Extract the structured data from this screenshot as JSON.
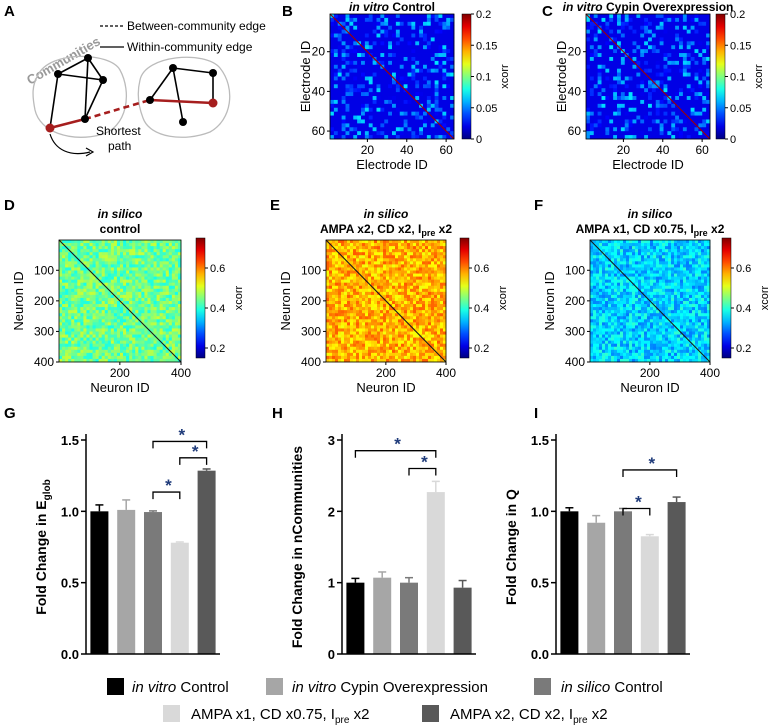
{
  "panel_letters": {
    "A": "A",
    "B": "B",
    "C": "C",
    "D": "D",
    "E": "E",
    "F": "F",
    "G": "G",
    "H": "H",
    "I": "I"
  },
  "diagram": {
    "legend_between": "Between-community edge",
    "legend_within": "Within-community edge",
    "communities_label": "Communities",
    "shortest_path_line1": "Shortest",
    "shortest_path_line2": "path"
  },
  "colors": {
    "black": "#000000",
    "in_vitro_cypin": "#a6a6a6",
    "in_silico_control": "#7a7a7a",
    "ampa_x1": "#d9d9d9",
    "ampa_x2": "#595959",
    "path_red": "#a61e1e"
  },
  "legend": {
    "item1_italic": "in vitro",
    "item1_rest": " Control",
    "item2_italic": "in vitro",
    "item2_rest": " Cypin Overexpression",
    "item3_italic": "in silico",
    "item3_rest": " Control",
    "item4": "AMPA x1, CD x0.75, I",
    "item4_sub": "pre",
    "item4_tail": " x2",
    "item5": "AMPA x2, CD x2, I",
    "item5_sub": "pre",
    "item5_tail": " x2"
  },
  "chart_data": [
    {
      "id": "B",
      "type": "heatmap",
      "title_italic": "in vitro",
      "title_rest": " Control",
      "xlabel": "Electrode ID",
      "ylabel": "Electrode ID",
      "xticks": [
        "20",
        "40",
        "60"
      ],
      "yticks": [
        "20",
        "40",
        "60"
      ],
      "range": [
        1,
        64
      ],
      "colorbar_label": "xcorr",
      "colorbar_ticks": [
        "0.2",
        "0.15",
        "0.1",
        "0.05",
        "0"
      ],
      "clim": [
        0,
        0.2
      ],
      "mean_value": 0.03
    },
    {
      "id": "C",
      "type": "heatmap",
      "title_italic": "in vitro",
      "title_rest": " Cypin Overexpression",
      "xlabel": "Electrode ID",
      "ylabel": "Electrode ID",
      "xticks": [
        "20",
        "40",
        "60"
      ],
      "yticks": [
        "20",
        "40",
        "60"
      ],
      "range": [
        1,
        64
      ],
      "colorbar_label": "xcorr",
      "colorbar_ticks": [
        "0.2",
        "0.15",
        "0.1",
        "0.05",
        "0"
      ],
      "clim": [
        0,
        0.2
      ],
      "mean_value": 0.03
    },
    {
      "id": "D",
      "type": "heatmap",
      "title_italic": "in silico",
      "title_line2": "control",
      "xlabel": "Neuron ID",
      "ylabel": "Neuron ID",
      "xticks": [
        "200",
        "400"
      ],
      "yticks": [
        "100",
        "200",
        "300",
        "400"
      ],
      "range": [
        1,
        400
      ],
      "colorbar_label": "xcorr",
      "colorbar_ticks": [
        "0.6",
        "0.4",
        "0.2"
      ],
      "clim": [
        0.15,
        0.75
      ],
      "mean_value": 0.44
    },
    {
      "id": "E",
      "type": "heatmap",
      "title_italic": "in silico",
      "title_line2": "AMPA x2, CD x2, I",
      "title_sub": "pre",
      "title_tail": " x2",
      "xlabel": "Neuron ID",
      "ylabel": "Neuron ID",
      "xticks": [
        "200",
        "400"
      ],
      "yticks": [
        "100",
        "200",
        "300",
        "400"
      ],
      "range": [
        1,
        400
      ],
      "colorbar_label": "xcorr",
      "colorbar_ticks": [
        "0.6",
        "0.4",
        "0.2"
      ],
      "clim": [
        0.15,
        0.75
      ],
      "mean_value": 0.57
    },
    {
      "id": "F",
      "type": "heatmap",
      "title_italic": "in silico",
      "title_line2": "AMPA x1, CD x0.75, I",
      "title_sub": "pre",
      "title_tail": " x2",
      "xlabel": "Neuron ID",
      "ylabel": "Neuron ID",
      "xticks": [
        "200",
        "400"
      ],
      "yticks": [
        "100",
        "200",
        "300",
        "400"
      ],
      "range": [
        1,
        400
      ],
      "colorbar_label": "xcorr",
      "colorbar_ticks": [
        "0.6",
        "0.4",
        "0.2"
      ],
      "clim": [
        0.15,
        0.75
      ],
      "mean_value": 0.35
    },
    {
      "id": "G",
      "type": "bar",
      "ylabel": "Fold Change in E",
      "ylabel_sub": "glob",
      "ylim": [
        0,
        1.5
      ],
      "yticks": [
        "0.0",
        "0.5",
        "1.0",
        "1.5"
      ],
      "categories": [
        "in vitro Control",
        "in vitro Cypin Overexpression",
        "in silico Control",
        "AMPA x1, CD x0.75, Ipre x2",
        "AMPA x2, CD x2, Ipre x2"
      ],
      "values": [
        1.0,
        1.01,
        0.995,
        0.78,
        1.285
      ],
      "errors": [
        0.045,
        0.07,
        0.008,
        0.005,
        0.012
      ],
      "significance": [
        {
          "from": 2,
          "to": 4,
          "label": "*"
        },
        {
          "from": 3,
          "to": 4,
          "label": "*"
        },
        {
          "from": 2,
          "to": 3,
          "label": "*"
        }
      ]
    },
    {
      "id": "H",
      "type": "bar",
      "ylabel": "Fold Change in nCommunities",
      "ylim": [
        0,
        3
      ],
      "yticks": [
        "0",
        "1",
        "2",
        "3"
      ],
      "categories": [
        "in vitro Control",
        "in vitro Cypin Overexpression",
        "in silico Control",
        "AMPA x1, CD x0.75, Ipre x2",
        "AMPA x2, CD x2, Ipre x2"
      ],
      "values": [
        1.0,
        1.07,
        1.0,
        2.27,
        0.93
      ],
      "errors": [
        0.06,
        0.08,
        0.07,
        0.15,
        0.1
      ],
      "significance": [
        {
          "from": 0,
          "to": 3,
          "label": "*"
        },
        {
          "from": 2,
          "to": 3,
          "label": "*"
        }
      ]
    },
    {
      "id": "I",
      "type": "bar",
      "ylabel": "Fold Change in Q",
      "ylim": [
        0,
        1.5
      ],
      "yticks": [
        "0.0",
        "0.5",
        "1.0",
        "1.5"
      ],
      "categories": [
        "in vitro Control",
        "in vitro Cypin Overexpression",
        "in silico Control",
        "AMPA x1, CD x0.75, Ipre x2",
        "AMPA x2, CD x2, Ipre x2"
      ],
      "values": [
        1.0,
        0.92,
        1.0,
        0.825,
        1.065
      ],
      "errors": [
        0.025,
        0.05,
        0.02,
        0.012,
        0.035
      ],
      "significance": [
        {
          "from": 2,
          "to": 4,
          "label": "*"
        },
        {
          "from": 2,
          "to": 3,
          "label": "*"
        }
      ]
    }
  ]
}
